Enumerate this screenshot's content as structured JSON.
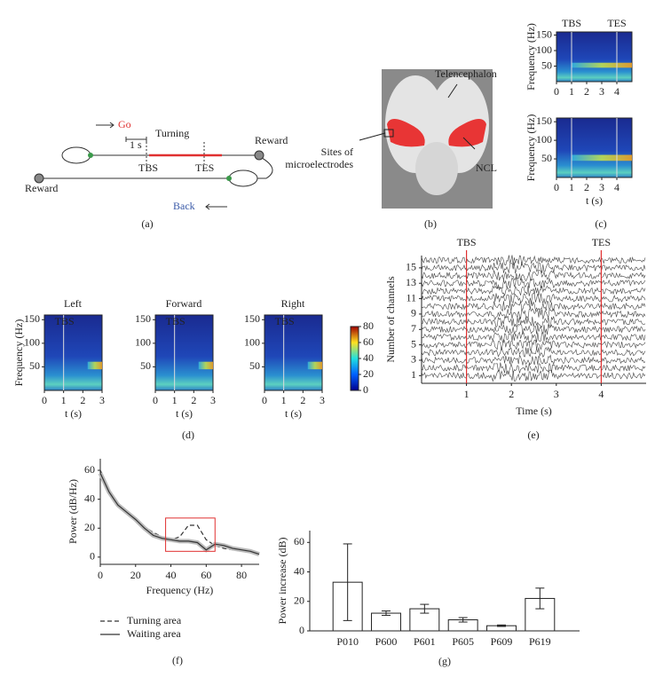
{
  "panels": {
    "a": {
      "go": "Go",
      "scale": "1 s",
      "turning": "Turning",
      "reward_right": "Reward",
      "reward_left": "Reward",
      "tbs": "TBS",
      "tes": "TES",
      "back": "Back",
      "caption": "(a)"
    },
    "b": {
      "telencephalon": "Telencephalon",
      "sites": [
        "Sites of",
        "microelectrodes"
      ],
      "ncl": "NCL",
      "caption": "(b)"
    },
    "c": {
      "markers": [
        "TBS",
        "TES"
      ],
      "marker_times": [
        1,
        4
      ],
      "ylabel": "Frequency (Hz)",
      "xlabel": "t (s)",
      "xlim": [
        0,
        5
      ],
      "ylim": [
        0,
        160
      ],
      "xticks": [
        0,
        1,
        2,
        3,
        4
      ],
      "yticks": [
        50,
        100,
        150
      ],
      "caption": "(c)"
    },
    "d": {
      "titles": [
        "Left",
        "Forward",
        "Right"
      ],
      "marker": "TBS",
      "marker_time": 1,
      "ylabel": "Frequency (Hz)",
      "xlabel": "t (s)",
      "xlim": [
        0,
        3
      ],
      "ylim": [
        0,
        160
      ],
      "xticks": [
        0,
        1,
        2,
        3
      ],
      "yticks": [
        50,
        100,
        150
      ],
      "colorbar_lim": [
        0,
        80
      ],
      "colorbar_ticks": [
        0,
        20,
        40,
        60,
        80
      ],
      "caption": "(d)"
    },
    "e": {
      "markers": [
        "TBS",
        "TES"
      ],
      "marker_times": [
        1,
        4
      ],
      "ylabel": "Number of channels",
      "xlabel": "Time (s)",
      "xlim": [
        0,
        5
      ],
      "ylim": [
        0,
        16.6
      ],
      "xticks": [
        1,
        2,
        3,
        4
      ],
      "yticks": [
        1,
        3,
        5,
        7,
        9,
        11,
        13,
        15
      ],
      "caption": "(e)"
    }
  },
  "chart_data": [
    {
      "type": "line",
      "ylabel": "Power (dB/Hz)",
      "xlabel": "Frequency (Hz)",
      "x": [
        0,
        5,
        10,
        15,
        20,
        25,
        30,
        35,
        40,
        45,
        50,
        55,
        60,
        65,
        70,
        75,
        80,
        85,
        90
      ],
      "series": [
        {
          "name": "Turning area",
          "color": "#333333",
          "dash": true,
          "values": [
            60,
            47,
            37,
            31,
            26,
            21,
            17,
            14,
            12,
            14,
            22,
            22,
            12,
            8,
            6,
            5,
            4,
            3,
            2
          ]
        },
        {
          "name": "Waiting area",
          "color": "#333333",
          "values": [
            58,
            45,
            36,
            31,
            26,
            20,
            15,
            13,
            12,
            11,
            11,
            10,
            5,
            9,
            8,
            6,
            5,
            4,
            2
          ]
        }
      ],
      "xlim": [
        0,
        90
      ],
      "ylim": [
        -5,
        68
      ],
      "xticks": [
        0,
        20,
        40,
        60,
        80
      ],
      "yticks": [
        0,
        20,
        40,
        60
      ],
      "highlight": {
        "xlim": [
          37,
          65
        ],
        "ylim": [
          4,
          27
        ],
        "color": "#e03030"
      },
      "caption": "(f)"
    },
    {
      "type": "bar",
      "ylabel": "Power increase (dB)",
      "categories": [
        "P010",
        "P600",
        "P601",
        "P605",
        "P609",
        "P619"
      ],
      "values": [
        33,
        12,
        15,
        7.5,
        3.5,
        22
      ],
      "errors": [
        26,
        1.5,
        3,
        1.5,
        0.5,
        7
      ],
      "color": "#ffffff",
      "ylim": [
        0,
        68
      ],
      "yticks": [
        0,
        20,
        40,
        60
      ],
      "caption": "(g)"
    }
  ]
}
